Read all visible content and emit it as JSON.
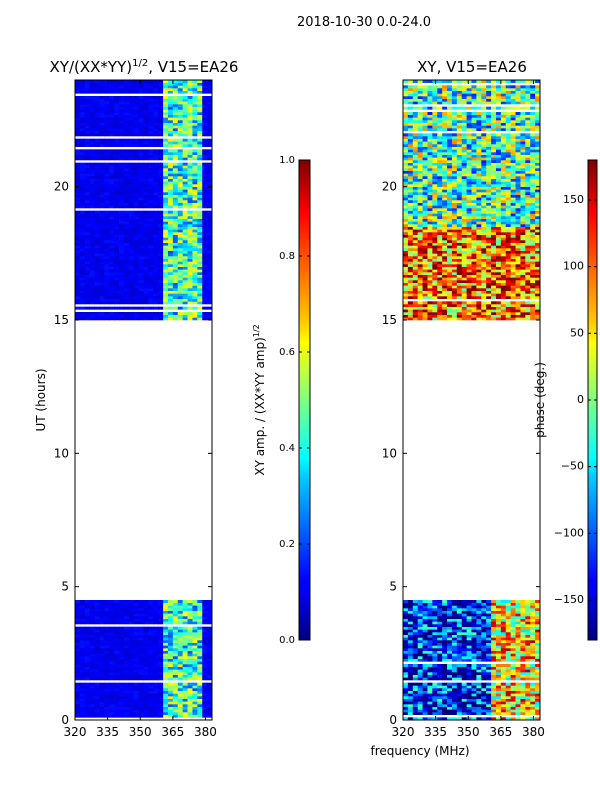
{
  "figure": {
    "suptitle": "2018-10-30 0.0-24.0",
    "shared_xlabel": "frequency (MHz)"
  },
  "chart_data": [
    {
      "type": "heatmap",
      "title": "XY/(XX*YY)",
      "title_exponent": "1/2",
      "title_suffix": ", V15=EA26",
      "ylabel": "UT (hours)",
      "xlim": [
        320,
        383
      ],
      "ylim": [
        0,
        24
      ],
      "xticks": [
        "320",
        "335",
        "350",
        "365",
        "380"
      ],
      "xtick_values": [
        320,
        335,
        350,
        365,
        380
      ],
      "yticks": [
        "0",
        "5",
        "10",
        "15",
        "20"
      ],
      "ytick_values": [
        0,
        5,
        10,
        15,
        20
      ],
      "data_ranges_hours": [
        [
          0,
          4.5
        ],
        [
          15,
          24
        ]
      ],
      "colorbar": {
        "label": "XY amp. / (XX*YY amp)",
        "label_exponent": "1/2",
        "range": [
          0,
          1
        ],
        "ticks": [
          "0.0",
          "0.2",
          "0.4",
          "0.6",
          "0.8",
          "1.0"
        ],
        "tick_values": [
          0,
          0.2,
          0.4,
          0.6,
          0.8,
          1.0
        ]
      }
    },
    {
      "type": "heatmap",
      "title": "XY, V15=EA26",
      "ylabel": "",
      "xlim": [
        320,
        383
      ],
      "ylim": [
        0,
        24
      ],
      "xticks": [
        "320",
        "335",
        "350",
        "365",
        "380"
      ],
      "xtick_values": [
        320,
        335,
        350,
        365,
        380
      ],
      "yticks": [
        "0",
        "5",
        "10",
        "15",
        "20"
      ],
      "ytick_values": [
        0,
        5,
        10,
        15,
        20
      ],
      "data_ranges_hours": [
        [
          0,
          4.5
        ],
        [
          15,
          24
        ]
      ],
      "colorbar": {
        "label": "phase (deg.)",
        "range": [
          -180,
          180
        ],
        "ticks": [
          "−150",
          "−100",
          "−50",
          "0",
          "50",
          "100",
          "150"
        ],
        "tick_values": [
          -150,
          -100,
          -50,
          0,
          50,
          100,
          150
        ]
      }
    }
  ]
}
